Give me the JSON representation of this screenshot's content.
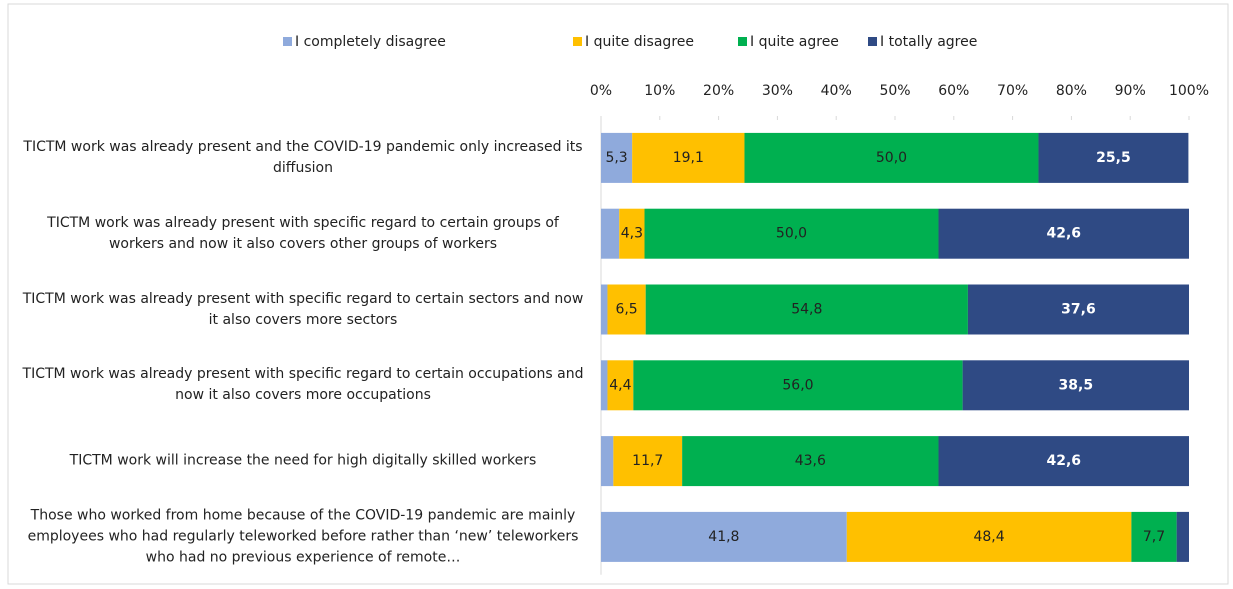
{
  "chart_data": {
    "type": "stacked_bar_horizontal",
    "categories": [
      "TICTM work was already present and the COVID-19 pandemic only increased its diffusion",
      "TICTM work was already present with specific regard to certain groups of workers and now it also covers other groups of workers",
      "TICTM work was already present with specific regard to certain sectors and now it also covers more sectors",
      "TICTM work was already present with specific regard to certain occupations and now it also covers more occupations",
      "TICTM work will increase the need for high digitally skilled workers",
      "Those who worked from home because of the COVID-19 pandemic are mainly employees who had regularly teleworked before rather than ‘new’ teleworkers who had no previous experience of remote…"
    ],
    "series": [
      {
        "name": "I completely disagree",
        "color": "#8faadc",
        "values": [
          5.3,
          3.1,
          1.1,
          1.1,
          2.1,
          41.8
        ],
        "value_labels": [
          "5,3",
          null,
          null,
          null,
          null,
          "41,8"
        ]
      },
      {
        "name": "I quite disagree",
        "color": "#ffc000",
        "values": [
          19.1,
          4.3,
          6.5,
          4.4,
          11.7,
          48.4
        ],
        "value_labels": [
          "19,1",
          "4,3",
          "6,5",
          "4,4",
          "11,7",
          "48,4"
        ]
      },
      {
        "name": "I quite agree",
        "color": "#00b050",
        "values": [
          50.0,
          50.0,
          54.8,
          56.0,
          43.6,
          7.7
        ],
        "value_labels": [
          "50,0",
          "50,0",
          "54,8",
          "56,0",
          "43,6",
          "7,7"
        ]
      },
      {
        "name": "I totally agree",
        "color": "#2f4a84",
        "values": [
          25.5,
          42.6,
          37.6,
          38.5,
          42.6,
          2.1
        ],
        "value_labels": [
          "25,5",
          "42,6",
          "37,6",
          "38,5",
          "42,6",
          null
        ]
      }
    ],
    "xlim": [
      0,
      100
    ],
    "xticks": [
      {
        "value": 0,
        "label": "0%"
      },
      {
        "value": 10,
        "label": "10%"
      },
      {
        "value": 20,
        "label": "20%"
      },
      {
        "value": 30,
        "label": "30%"
      },
      {
        "value": 40,
        "label": "40%"
      },
      {
        "value": 50,
        "label": "50%"
      },
      {
        "value": 60,
        "label": "60%"
      },
      {
        "value": 70,
        "label": "70%"
      },
      {
        "value": 80,
        "label": "80%"
      },
      {
        "value": 90,
        "label": "90%"
      },
      {
        "value": 100,
        "label": "100%"
      }
    ],
    "legend": "top"
  }
}
